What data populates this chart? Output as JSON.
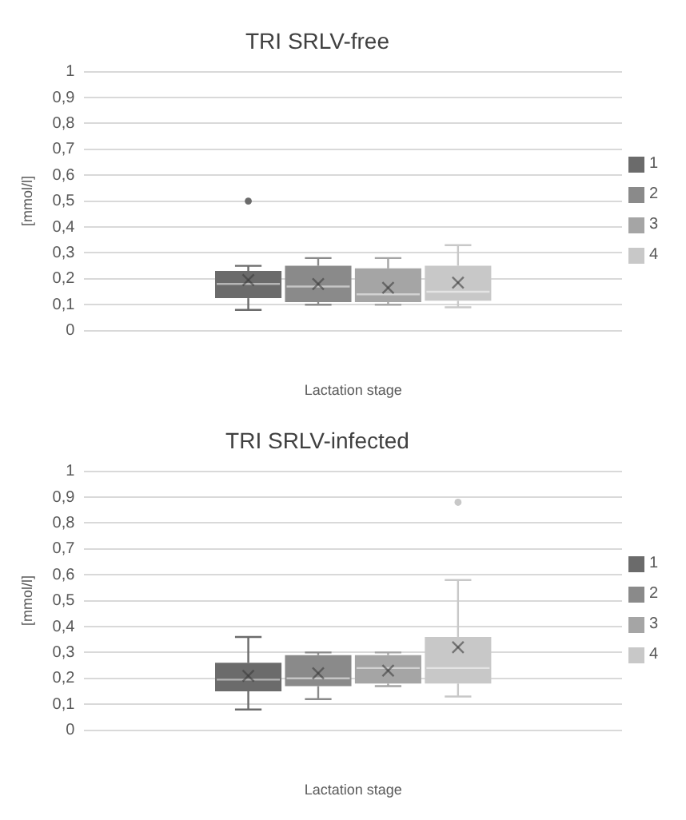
{
  "chart_data": [
    {
      "type": "box",
      "title": "TRI SRLV-free",
      "xlabel": "Lactation stage",
      "ylabel": "[mmol/l]",
      "categories": [
        null
      ],
      "ylim": [
        0,
        1
      ],
      "yticks": [
        {
          "value": 0,
          "label": "0"
        },
        {
          "value": 0.1,
          "label": "0,1"
        },
        {
          "value": 0.2,
          "label": "0,2"
        },
        {
          "value": 0.3,
          "label": "0,3"
        },
        {
          "value": 0.4,
          "label": "0,4"
        },
        {
          "value": 0.5,
          "label": "0,5"
        },
        {
          "value": 0.6,
          "label": "0,6"
        },
        {
          "value": 0.7,
          "label": "0,7"
        },
        {
          "value": 0.8,
          "label": "0,8"
        },
        {
          "value": 0.9,
          "label": "0,9"
        },
        {
          "value": 1,
          "label": "1"
        }
      ],
      "grid": "y",
      "legend": "right",
      "series": [
        {
          "name": "1",
          "color": "#6b6b6b",
          "boxes": [
            {
              "low": 0.08,
              "q1": 0.125,
              "median": 0.18,
              "q3": 0.23,
              "high": 0.25,
              "mean": 0.195,
              "outliers": [
                0.5
              ]
            }
          ]
        },
        {
          "name": "2",
          "color": "#8a8a8a",
          "boxes": [
            {
              "low": 0.1,
              "q1": 0.11,
              "median": 0.17,
              "q3": 0.25,
              "high": 0.28,
              "mean": 0.18
            }
          ]
        },
        {
          "name": "3",
          "color": "#a5a5a5",
          "boxes": [
            {
              "low": 0.1,
              "q1": 0.11,
              "median": 0.14,
              "q3": 0.24,
              "high": 0.28,
              "mean": 0.165
            }
          ]
        },
        {
          "name": "4",
          "color": "#c8c8c8",
          "boxes": [
            {
              "low": 0.09,
              "q1": 0.115,
              "median": 0.15,
              "q3": 0.25,
              "high": 0.33,
              "mean": 0.185
            }
          ]
        }
      ]
    },
    {
      "type": "box",
      "title": "TRI SRLV-infected",
      "xlabel": "Lactation stage",
      "ylabel": "[mmol/l]",
      "categories": [
        null
      ],
      "ylim": [
        0,
        1
      ],
      "yticks": [
        {
          "value": 0,
          "label": "0"
        },
        {
          "value": 0.1,
          "label": "0,1"
        },
        {
          "value": 0.2,
          "label": "0,2"
        },
        {
          "value": 0.3,
          "label": "0,3"
        },
        {
          "value": 0.4,
          "label": "0,4"
        },
        {
          "value": 0.5,
          "label": "0,5"
        },
        {
          "value": 0.6,
          "label": "0,6"
        },
        {
          "value": 0.7,
          "label": "0,7"
        },
        {
          "value": 0.8,
          "label": "0,8"
        },
        {
          "value": 0.9,
          "label": "0,9"
        },
        {
          "value": 1,
          "label": "1"
        }
      ],
      "grid": "y",
      "legend": "right",
      "series": [
        {
          "name": "1",
          "color": "#6b6b6b",
          "boxes": [
            {
              "low": 0.08,
              "q1": 0.15,
              "median": 0.195,
              "q3": 0.26,
              "high": 0.36,
              "mean": 0.21
            }
          ]
        },
        {
          "name": "2",
          "color": "#8a8a8a",
          "boxes": [
            {
              "low": 0.12,
              "q1": 0.17,
              "median": 0.2,
              "q3": 0.29,
              "high": 0.3,
              "mean": 0.22
            }
          ]
        },
        {
          "name": "3",
          "color": "#a5a5a5",
          "boxes": [
            {
              "low": 0.17,
              "q1": 0.18,
              "median": 0.24,
              "q3": 0.29,
              "high": 0.3,
              "mean": 0.23
            }
          ]
        },
        {
          "name": "4",
          "color": "#c8c8c8",
          "boxes": [
            {
              "low": 0.13,
              "q1": 0.18,
              "median": 0.24,
              "q3": 0.36,
              "high": 0.58,
              "mean": 0.32,
              "outliers": [
                0.88
              ]
            }
          ]
        }
      ]
    }
  ]
}
